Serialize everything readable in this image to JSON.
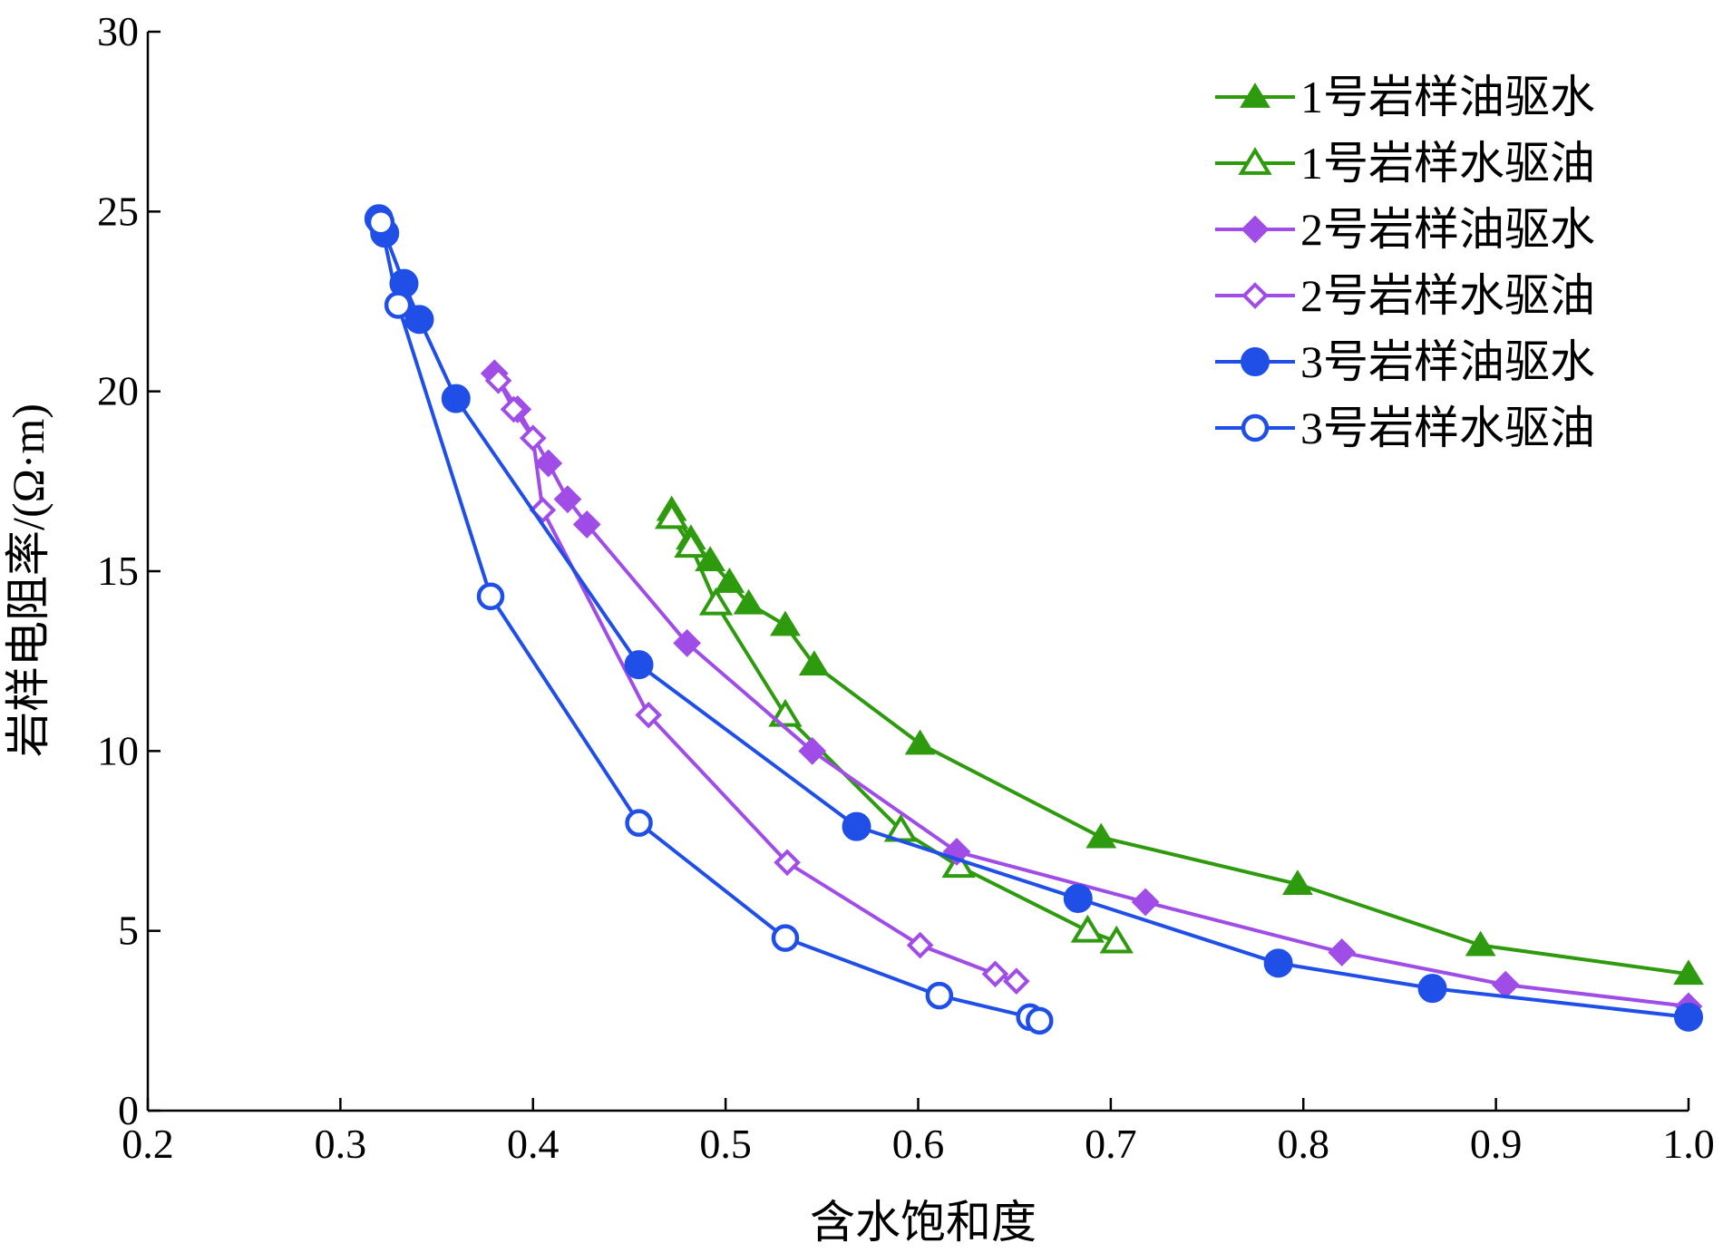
{
  "chart_data": {
    "type": "line",
    "title": "",
    "xlabel": "含水饱和度",
    "ylabel": "岩样电阻率/(Ω·m)",
    "xlim": [
      0.2,
      1.0
    ],
    "ylim": [
      0,
      30
    ],
    "xticks": [
      "0.2",
      "0.3",
      "0.4",
      "0.5",
      "0.6",
      "0.7",
      "0.8",
      "0.9",
      "1.0"
    ],
    "yticks": [
      "0",
      "5",
      "10",
      "15",
      "20",
      "25",
      "30"
    ],
    "grid": false,
    "legend_position": "top-right",
    "series": [
      {
        "name": "1号岩样油驱水",
        "color": "#2e9a0e",
        "marker": "triangle-filled",
        "x": [
          0.472,
          0.482,
          0.492,
          0.502,
          0.512,
          0.531,
          0.546,
          0.601,
          0.695,
          0.797,
          0.892,
          1.0
        ],
        "y": [
          16.7,
          15.9,
          15.3,
          14.7,
          14.1,
          13.5,
          12.4,
          10.2,
          7.6,
          6.3,
          4.6,
          3.8
        ]
      },
      {
        "name": "1号岩样水驱油",
        "color": "#2e9a0e",
        "marker": "triangle-open",
        "x": [
          0.472,
          0.482,
          0.495,
          0.531,
          0.591,
          0.621,
          0.688,
          0.703
        ],
        "y": [
          16.5,
          15.7,
          14.1,
          11.0,
          7.8,
          6.8,
          5.0,
          4.7
        ]
      },
      {
        "name": "2号岩样油驱水",
        "color": "#a04de8",
        "marker": "diamond-filled",
        "x": [
          0.38,
          0.392,
          0.408,
          0.418,
          0.428,
          0.48,
          0.545,
          0.62,
          0.718,
          0.82,
          0.905,
          1.0
        ],
        "y": [
          20.5,
          19.5,
          18.0,
          17.0,
          16.3,
          13.0,
          10.0,
          7.2,
          5.8,
          4.4,
          3.5,
          2.9
        ]
      },
      {
        "name": "2号岩样水驱油",
        "color": "#a04de8",
        "marker": "diamond-open",
        "x": [
          0.382,
          0.39,
          0.4,
          0.405,
          0.46,
          0.532,
          0.601,
          0.64,
          0.651
        ],
        "y": [
          20.3,
          19.5,
          18.7,
          16.7,
          11.0,
          6.9,
          4.6,
          3.8,
          3.6
        ]
      },
      {
        "name": "3号岩样油驱水",
        "color": "#1f4fe6",
        "marker": "circle-filled",
        "x": [
          0.32,
          0.323,
          0.333,
          0.341,
          0.36,
          0.455,
          0.568,
          0.683,
          0.787,
          0.867,
          1.0
        ],
        "y": [
          24.8,
          24.4,
          23.0,
          22.0,
          19.8,
          12.4,
          7.9,
          5.9,
          4.1,
          3.4,
          2.6
        ]
      },
      {
        "name": "3号岩样水驱油",
        "color": "#1f4fe6",
        "marker": "circle-open",
        "x": [
          0.321,
          0.33,
          0.378,
          0.455,
          0.531,
          0.611,
          0.658,
          0.663
        ],
        "y": [
          24.7,
          22.4,
          14.3,
          8.0,
          4.8,
          3.2,
          2.6,
          2.5
        ]
      }
    ]
  }
}
